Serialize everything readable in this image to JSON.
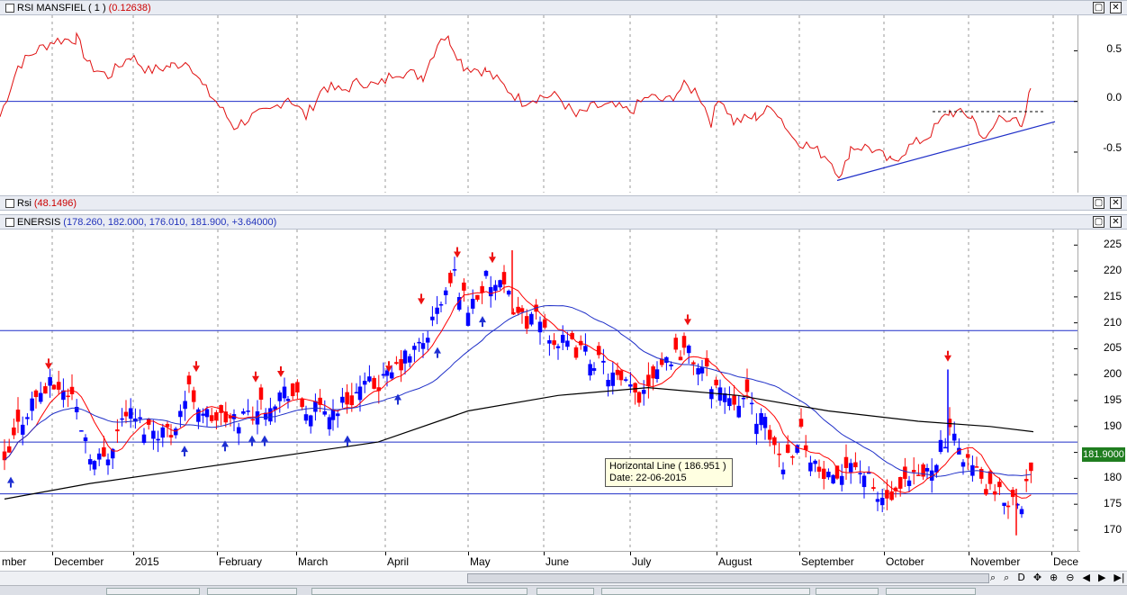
{
  "panes": {
    "rsi_mansfield": {
      "title": "RSI MANSFIEL ( 1 )",
      "value": "(0.12638)"
    },
    "rsi": {
      "title": "Rsi",
      "value": "(48.1496)"
    },
    "price": {
      "title": "ENERSIS",
      "value": "(178.260, 182.000, 176.010, 181.900, +3.64000)"
    }
  },
  "window_buttons": {
    "restore": "▢",
    "close": "✕"
  },
  "mansfield_scale": [
    "0.5",
    "0.0",
    "-0.5"
  ],
  "price_scale": [
    "225",
    "220",
    "215",
    "210",
    "205",
    "200",
    "195",
    "190",
    "185",
    "180",
    "175",
    "170"
  ],
  "last_price": "181.9000",
  "date_axis": [
    "mber",
    "December",
    "2015",
    "February",
    "March",
    "April",
    "May",
    "June",
    "July",
    "August",
    "September",
    "October",
    "November",
    "Dece"
  ],
  "tooltip": {
    "line1": "Horizontal Line ( 186.951 )",
    "line2": "Date: 22-06-2015"
  },
  "nav_icons": [
    "zoom-fit-icon",
    "zoom-out-icon",
    "d-icon",
    "move-icon",
    "zoom-in-icon",
    "binoculars-icon",
    "prev-icon",
    "next-icon",
    "end-icon"
  ],
  "nav_glyphs": [
    "⌕",
    "⌕",
    "D",
    "✥",
    "⊕",
    "⊖",
    "◀",
    "▶",
    "▶|"
  ],
  "colors": {
    "price_up": "#0000ff",
    "price_down": "#ff0000",
    "ma_short": "#ff0000",
    "ma_mid": "#1f2fc8",
    "ma_long": "#000000",
    "hline": "#1f2fc8",
    "last_price_bg": "#1f7d1f"
  },
  "chart_data": {
    "type": "line",
    "title": "ENERSIS",
    "price_range": [
      166,
      228
    ],
    "mansfield_range": [
      -0.9,
      0.85
    ],
    "horizontal_lines": [
      208.5,
      187,
      177
    ],
    "mansfield_zero_line": 0.0,
    "signals_down": [
      "December",
      "early February",
      "mid February",
      "late February",
      "late March",
      "April",
      "April",
      "May",
      "July",
      "late October"
    ],
    "signals_up": [
      "November",
      "December",
      "January",
      "February",
      "March",
      "April",
      "April"
    ]
  }
}
